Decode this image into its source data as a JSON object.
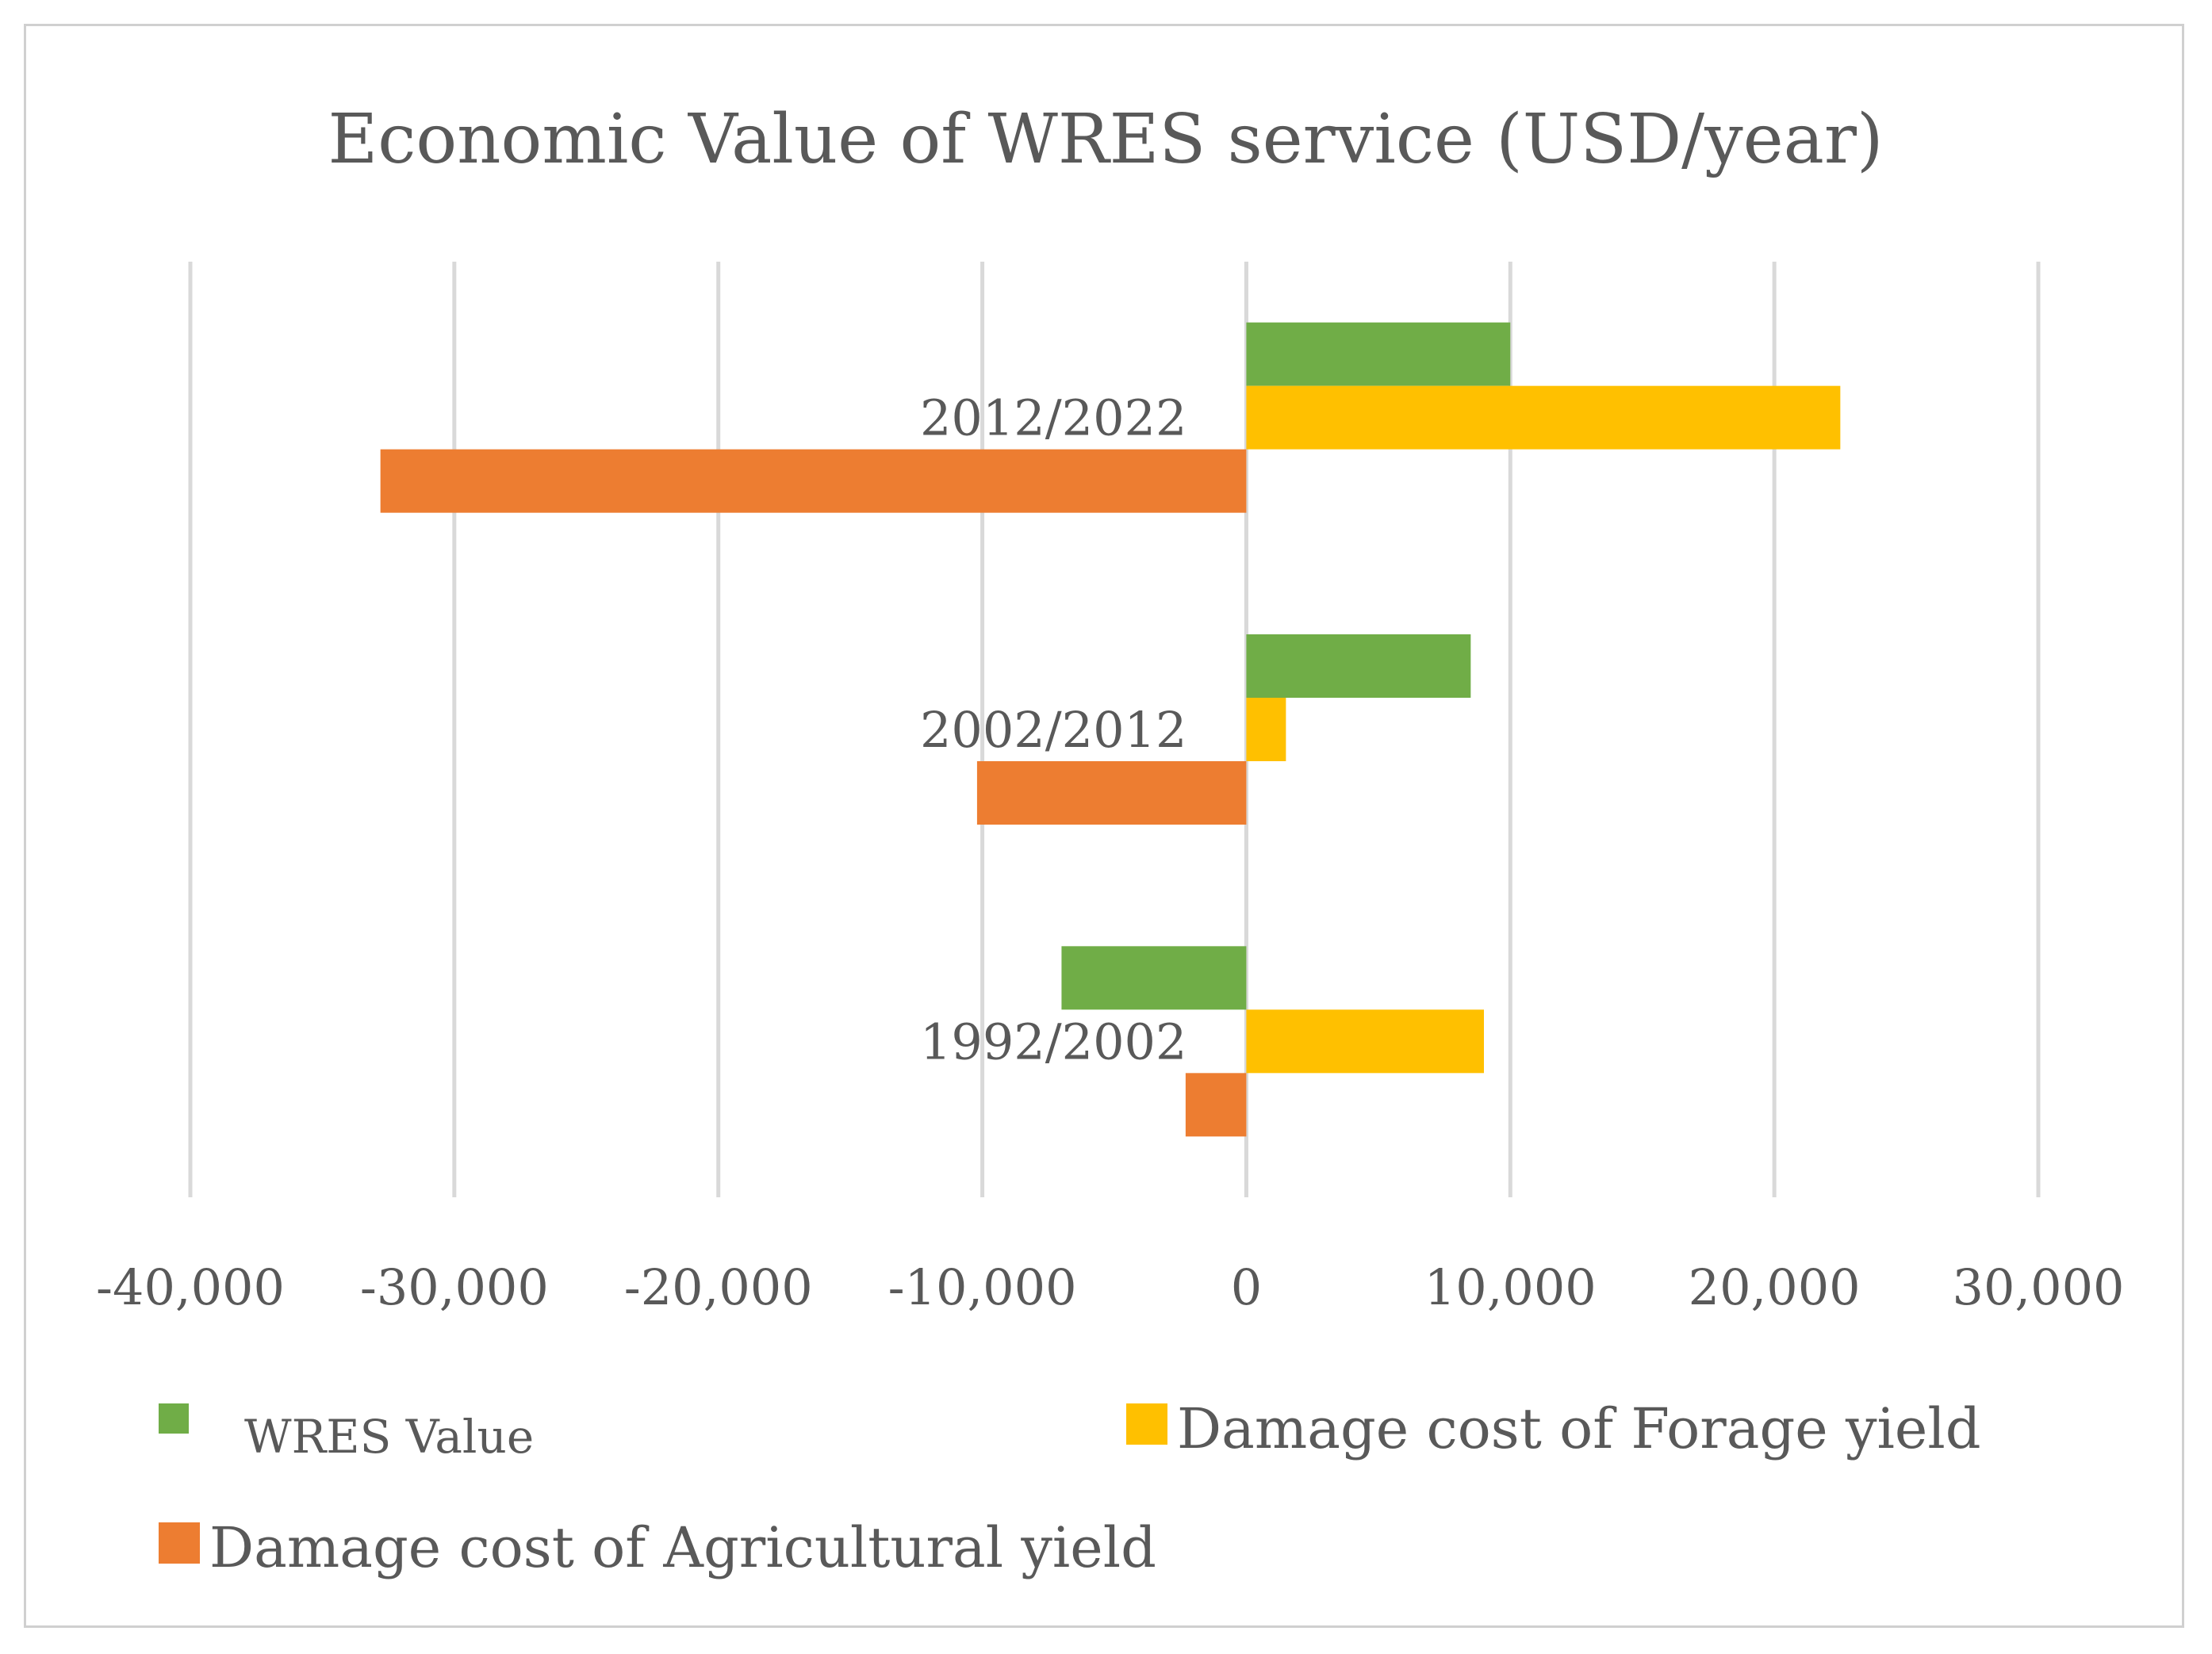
{
  "chart_data": {
    "type": "bar",
    "orientation": "horizontal",
    "title": "Economic Value of WRES service (USD/year)",
    "categories": [
      "1992/2002",
      "2002/2012",
      "2012/2022"
    ],
    "series": [
      {
        "name": "WRES Value",
        "color": "#70ad47",
        "values": [
          -7000,
          8500,
          10000
        ]
      },
      {
        "name": "Damage cost of Forage yield",
        "color": "#ffc000",
        "values": [
          9000,
          1500,
          22500
        ]
      },
      {
        "name": "Damage cost of Agricultural yield",
        "color": "#ed7d31",
        "values": [
          -2300,
          -10200,
          -32800
        ]
      }
    ],
    "xlim": [
      -40000,
      30000
    ],
    "xticks": [
      -40000,
      -30000,
      -20000,
      -10000,
      0,
      10000,
      20000,
      30000
    ],
    "xtick_labels": [
      "-40,000",
      "-30,000",
      "-20,000",
      "-10,000",
      "0",
      "10,000",
      "20,000",
      "30,000"
    ],
    "grid": true,
    "legend_position": "bottom"
  }
}
